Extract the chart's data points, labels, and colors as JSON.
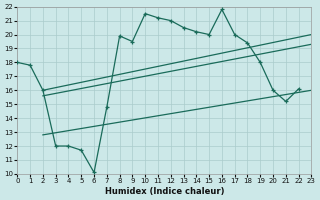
{
  "bg_color": "#cce8e8",
  "grid_color": "#aacccc",
  "line_color": "#1a6b5a",
  "xlabel": "Humidex (Indice chaleur)",
  "xlim": [
    0,
    23
  ],
  "ylim": [
    10,
    22
  ],
  "xticks": [
    0,
    1,
    2,
    3,
    4,
    5,
    6,
    7,
    8,
    9,
    10,
    11,
    12,
    13,
    14,
    15,
    16,
    17,
    18,
    19,
    20,
    21,
    22,
    23
  ],
  "yticks": [
    10,
    11,
    12,
    13,
    14,
    15,
    16,
    17,
    18,
    19,
    20,
    21,
    22
  ],
  "curve_x": [
    0,
    1,
    2,
    3,
    4,
    5,
    6,
    7,
    8,
    9,
    10,
    11,
    12,
    13,
    14,
    15,
    16,
    17,
    18,
    19,
    20,
    21,
    22
  ],
  "curve_y": [
    18,
    17.8,
    16.0,
    12.0,
    12.0,
    11.7,
    10.1,
    14.8,
    19.9,
    19.5,
    21.5,
    21.2,
    21.0,
    20.5,
    20.2,
    20.0,
    21.8,
    20.0,
    19.4,
    18.0,
    16.0,
    15.2,
    16.1
  ],
  "line1_x": [
    2,
    23
  ],
  "line1_y": [
    16.0,
    20.0
  ],
  "line2_x": [
    2,
    23
  ],
  "line2_y": [
    15.6,
    19.3
  ],
  "line3_x": [
    2,
    23
  ],
  "line3_y": [
    12.8,
    16.0
  ]
}
